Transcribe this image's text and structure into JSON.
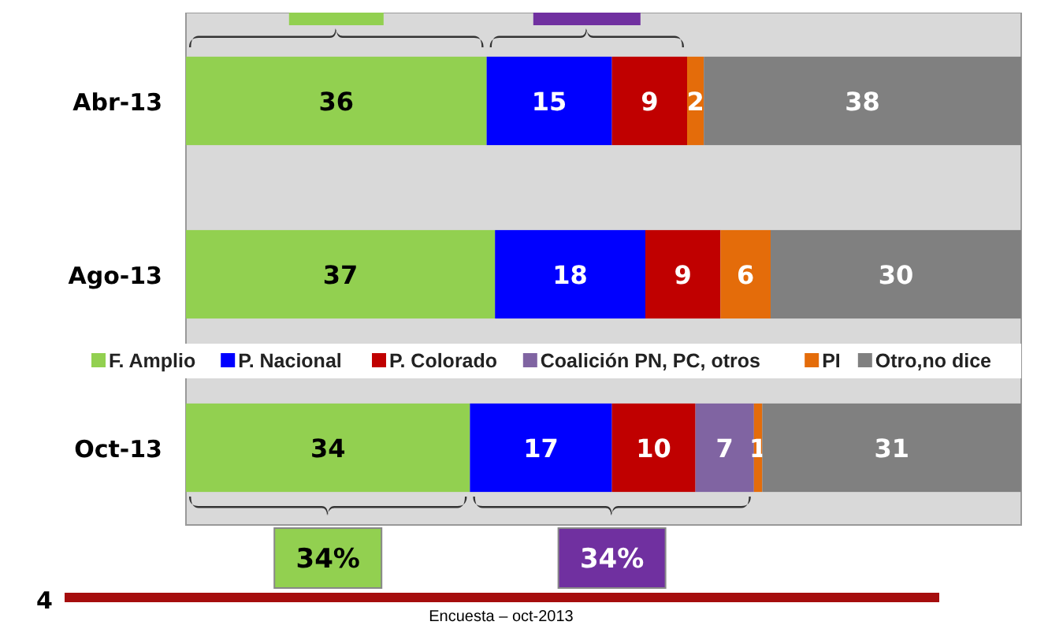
{
  "chart_data": {
    "type": "bar",
    "orientation": "horizontal",
    "stacked": true,
    "categories": [
      "Abr-13",
      "Ago-13",
      "Oct-13"
    ],
    "series": [
      {
        "name": "F. Amplio",
        "color": "#92d050",
        "values": [
          36,
          37,
          34
        ]
      },
      {
        "name": "P. Nacional",
        "color": "#0000ff",
        "values": [
          15,
          18,
          17
        ]
      },
      {
        "name": "P. Colorado",
        "color": "#c00000",
        "values": [
          9,
          9,
          10
        ]
      },
      {
        "name": "Coalición PN, PC, otros",
        "color": "#8064a2",
        "values": [
          null,
          null,
          7
        ]
      },
      {
        "name": "PI",
        "color": "#e46c0a",
        "values": [
          2,
          6,
          1
        ]
      },
      {
        "name": "Otro,no dice",
        "color": "#808080",
        "values": [
          38,
          30,
          31
        ]
      }
    ],
    "xlim": [
      0,
      100
    ],
    "tick_labels": "y",
    "data_labels": true,
    "legend": "center",
    "annotations": [
      "34%",
      "34%",
      "4",
      "Encuesta – oct-2013"
    ]
  }
}
